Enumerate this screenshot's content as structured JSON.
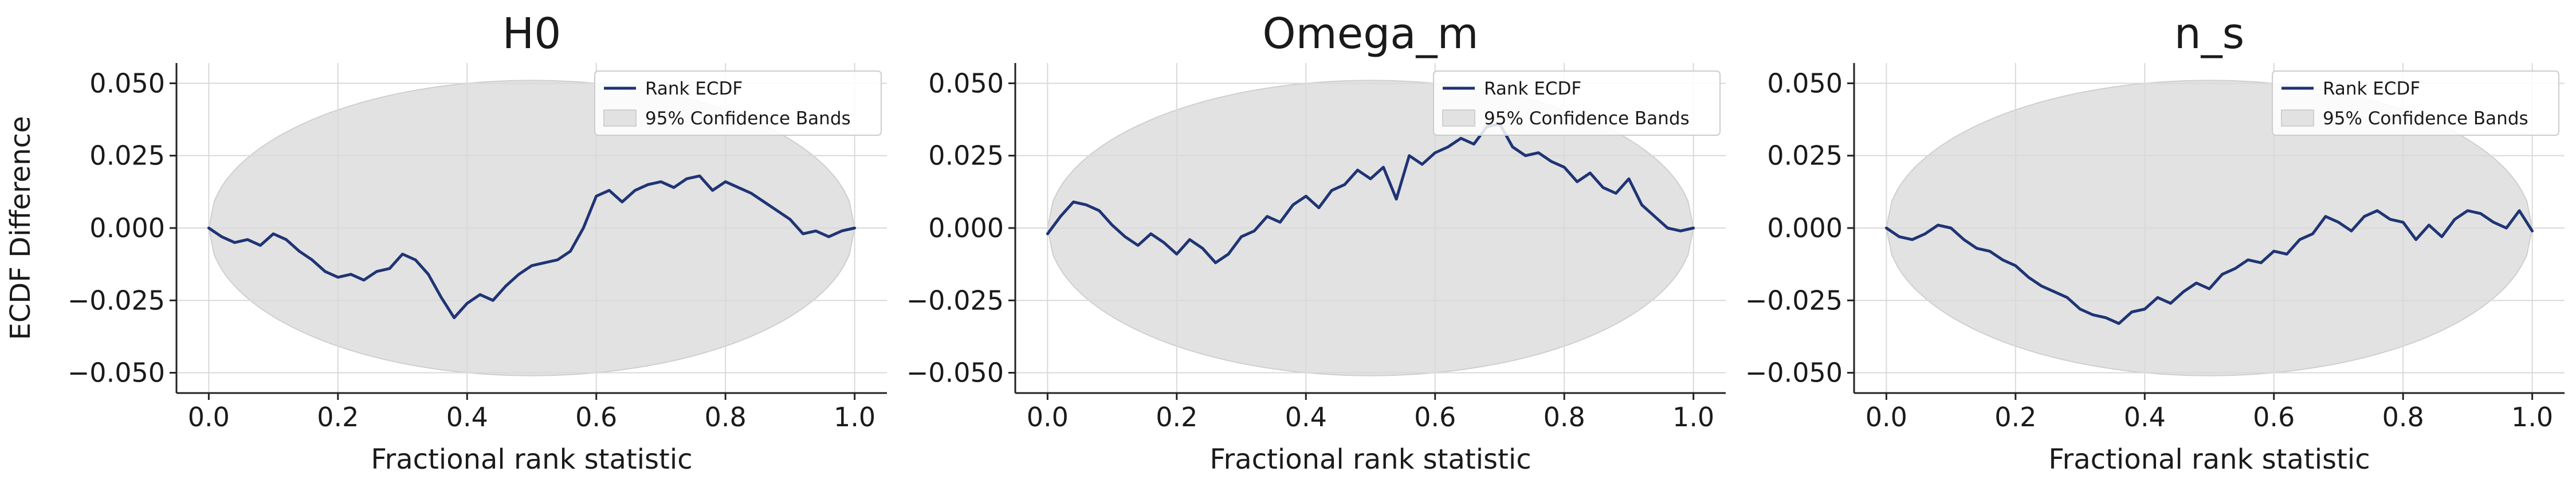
{
  "figure": {
    "y_axis_label": "ECDF Difference",
    "colors": {
      "line": "#1f3474",
      "band": "#e2e2e2",
      "band_edge": "#cfcfcf",
      "grid": "#d9d9d9",
      "axis": "#222222"
    }
  },
  "chart_data": [
    {
      "type": "line",
      "title": "H0",
      "xlabel": "Fractional rank statistic",
      "ylabel": "ECDF Difference",
      "xlim": [
        -0.05,
        1.05
      ],
      "ylim": [
        -0.057,
        0.057
      ],
      "xticks": [
        0.0,
        0.2,
        0.4,
        0.6,
        0.8,
        1.0
      ],
      "xtick_labels": [
        "0.0",
        "0.2",
        "0.4",
        "0.6",
        "0.8",
        "1.0"
      ],
      "yticks": [
        -0.05,
        -0.025,
        0.0,
        0.025,
        0.05
      ],
      "ytick_labels": [
        "−0.050",
        "−0.025",
        "0.000",
        "0.025",
        "0.050"
      ],
      "grid": true,
      "legend": {
        "location": "upper-right",
        "entries": [
          "Rank ECDF",
          "95% Confidence Bands"
        ]
      },
      "band": {
        "name": "95% Confidence Bands",
        "half_width_max": 0.051,
        "shape": "elliptical"
      },
      "series": [
        {
          "name": "Rank ECDF",
          "x": [
            0.0,
            0.02,
            0.04,
            0.06,
            0.08,
            0.1,
            0.12,
            0.14,
            0.16,
            0.18,
            0.2,
            0.22,
            0.24,
            0.26,
            0.28,
            0.3,
            0.32,
            0.34,
            0.36,
            0.38,
            0.4,
            0.42,
            0.44,
            0.46,
            0.48,
            0.5,
            0.52,
            0.54,
            0.56,
            0.58,
            0.6,
            0.62,
            0.64,
            0.66,
            0.68,
            0.7,
            0.72,
            0.74,
            0.76,
            0.78,
            0.8,
            0.82,
            0.84,
            0.86,
            0.88,
            0.9,
            0.92,
            0.94,
            0.96,
            0.98,
            1.0
          ],
          "y": [
            0.0,
            -0.003,
            -0.005,
            -0.004,
            -0.006,
            -0.002,
            -0.004,
            -0.008,
            -0.011,
            -0.015,
            -0.017,
            -0.016,
            -0.018,
            -0.015,
            -0.014,
            -0.009,
            -0.011,
            -0.016,
            -0.024,
            -0.031,
            -0.026,
            -0.023,
            -0.025,
            -0.02,
            -0.016,
            -0.013,
            -0.012,
            -0.011,
            -0.008,
            0.0,
            0.011,
            0.013,
            0.009,
            0.013,
            0.015,
            0.016,
            0.014,
            0.017,
            0.018,
            0.013,
            0.016,
            0.014,
            0.012,
            0.009,
            0.006,
            0.003,
            -0.002,
            -0.001,
            -0.003,
            -0.001,
            0.0
          ]
        }
      ]
    },
    {
      "type": "line",
      "title": "Omega_m",
      "xlabel": "Fractional rank statistic",
      "ylabel": "",
      "xlim": [
        -0.05,
        1.05
      ],
      "ylim": [
        -0.057,
        0.057
      ],
      "xticks": [
        0.0,
        0.2,
        0.4,
        0.6,
        0.8,
        1.0
      ],
      "xtick_labels": [
        "0.0",
        "0.2",
        "0.4",
        "0.6",
        "0.8",
        "1.0"
      ],
      "yticks": [
        -0.05,
        -0.025,
        0.0,
        0.025,
        0.05
      ],
      "ytick_labels": [
        "−0.050",
        "−0.025",
        "0.000",
        "0.025",
        "0.050"
      ],
      "grid": true,
      "legend": {
        "location": "upper-right",
        "entries": [
          "Rank ECDF",
          "95% Confidence Bands"
        ]
      },
      "band": {
        "name": "95% Confidence Bands",
        "half_width_max": 0.051,
        "shape": "elliptical"
      },
      "series": [
        {
          "name": "Rank ECDF",
          "x": [
            0.0,
            0.02,
            0.04,
            0.06,
            0.08,
            0.1,
            0.12,
            0.14,
            0.16,
            0.18,
            0.2,
            0.22,
            0.24,
            0.26,
            0.28,
            0.3,
            0.32,
            0.34,
            0.36,
            0.38,
            0.4,
            0.42,
            0.44,
            0.46,
            0.48,
            0.5,
            0.52,
            0.54,
            0.56,
            0.58,
            0.6,
            0.62,
            0.64,
            0.66,
            0.68,
            0.7,
            0.72,
            0.74,
            0.76,
            0.78,
            0.8,
            0.82,
            0.84,
            0.86,
            0.88,
            0.9,
            0.92,
            0.94,
            0.96,
            0.98,
            1.0
          ],
          "y": [
            -0.002,
            0.004,
            0.009,
            0.008,
            0.006,
            0.001,
            -0.003,
            -0.006,
            -0.002,
            -0.005,
            -0.009,
            -0.004,
            -0.007,
            -0.012,
            -0.009,
            -0.003,
            -0.001,
            0.004,
            0.002,
            0.008,
            0.011,
            0.007,
            0.013,
            0.015,
            0.02,
            0.017,
            0.021,
            0.01,
            0.025,
            0.022,
            0.026,
            0.028,
            0.031,
            0.029,
            0.035,
            0.036,
            0.028,
            0.025,
            0.026,
            0.023,
            0.021,
            0.016,
            0.019,
            0.014,
            0.012,
            0.017,
            0.008,
            0.004,
            0.0,
            -0.001,
            0.0
          ]
        }
      ]
    },
    {
      "type": "line",
      "title": "n_s",
      "xlabel": "Fractional rank statistic",
      "ylabel": "",
      "xlim": [
        -0.05,
        1.05
      ],
      "ylim": [
        -0.057,
        0.057
      ],
      "xticks": [
        0.0,
        0.2,
        0.4,
        0.6,
        0.8,
        1.0
      ],
      "xtick_labels": [
        "0.0",
        "0.2",
        "0.4",
        "0.6",
        "0.8",
        "1.0"
      ],
      "yticks": [
        -0.05,
        -0.025,
        0.0,
        0.025,
        0.05
      ],
      "ytick_labels": [
        "−0.050",
        "−0.025",
        "0.000",
        "0.025",
        "0.050"
      ],
      "grid": true,
      "legend": {
        "location": "upper-right",
        "entries": [
          "Rank ECDF",
          "95% Confidence Bands"
        ]
      },
      "band": {
        "name": "95% Confidence Bands",
        "half_width_max": 0.051,
        "shape": "elliptical"
      },
      "series": [
        {
          "name": "Rank ECDF",
          "x": [
            0.0,
            0.02,
            0.04,
            0.06,
            0.08,
            0.1,
            0.12,
            0.14,
            0.16,
            0.18,
            0.2,
            0.22,
            0.24,
            0.26,
            0.28,
            0.3,
            0.32,
            0.34,
            0.36,
            0.38,
            0.4,
            0.42,
            0.44,
            0.46,
            0.48,
            0.5,
            0.52,
            0.54,
            0.56,
            0.58,
            0.6,
            0.62,
            0.64,
            0.66,
            0.68,
            0.7,
            0.72,
            0.74,
            0.76,
            0.78,
            0.8,
            0.82,
            0.84,
            0.86,
            0.88,
            0.9,
            0.92,
            0.94,
            0.96,
            0.98,
            1.0
          ],
          "y": [
            0.0,
            -0.003,
            -0.004,
            -0.002,
            0.001,
            0.0,
            -0.004,
            -0.007,
            -0.008,
            -0.011,
            -0.013,
            -0.017,
            -0.02,
            -0.022,
            -0.024,
            -0.028,
            -0.03,
            -0.031,
            -0.033,
            -0.029,
            -0.028,
            -0.024,
            -0.026,
            -0.022,
            -0.019,
            -0.021,
            -0.016,
            -0.014,
            -0.011,
            -0.012,
            -0.008,
            -0.009,
            -0.004,
            -0.002,
            0.004,
            0.002,
            -0.001,
            0.004,
            0.006,
            0.003,
            0.002,
            -0.004,
            0.001,
            -0.003,
            0.003,
            0.006,
            0.005,
            0.002,
            0.0,
            0.006,
            -0.001
          ]
        }
      ]
    }
  ]
}
